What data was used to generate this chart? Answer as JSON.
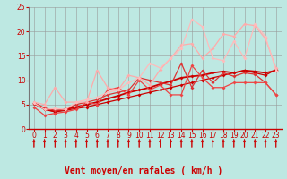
{
  "title": "",
  "xlabel": "Vent moyen/en rafales ( km/h )",
  "ylabel": "",
  "xlim": [
    -0.5,
    23.5
  ],
  "ylim": [
    0,
    25
  ],
  "xticks": [
    0,
    1,
    2,
    3,
    4,
    5,
    6,
    7,
    8,
    9,
    10,
    11,
    12,
    13,
    14,
    15,
    16,
    17,
    18,
    19,
    20,
    21,
    22,
    23
  ],
  "yticks": [
    0,
    5,
    10,
    15,
    20,
    25
  ],
  "bg_color": "#bde8e2",
  "grid_color": "#999999",
  "series": [
    {
      "x": [
        0,
        1,
        2,
        3,
        4,
        5,
        6,
        7,
        8,
        9,
        10,
        11,
        12,
        13,
        14,
        15,
        16,
        17,
        18,
        19,
        20,
        21,
        22,
        23
      ],
      "y": [
        5.2,
        4.0,
        3.5,
        3.8,
        4.2,
        4.5,
        5.0,
        5.5,
        6.0,
        6.5,
        7.0,
        7.5,
        8.0,
        8.5,
        9.0,
        9.5,
        10.0,
        10.5,
        11.0,
        11.5,
        12.0,
        11.5,
        11.0,
        12.2
      ],
      "color": "#cc0000",
      "lw": 0.9,
      "marker": "D",
      "ms": 2.0
    },
    {
      "x": [
        0,
        1,
        2,
        3,
        4,
        5,
        6,
        7,
        8,
        9,
        10,
        11,
        12,
        13,
        14,
        15,
        16,
        17,
        18,
        19,
        20,
        21,
        22,
        23
      ],
      "y": [
        5.3,
        4.1,
        3.6,
        4.0,
        4.5,
        5.0,
        5.5,
        6.2,
        6.8,
        7.5,
        8.0,
        8.5,
        9.2,
        9.8,
        10.5,
        10.8,
        11.0,
        11.5,
        11.8,
        11.5,
        12.0,
        11.8,
        11.5,
        12.0
      ],
      "color": "#cc0000",
      "lw": 1.3,
      "marker": "D",
      "ms": 2.0
    },
    {
      "x": [
        0,
        1,
        2,
        3,
        4,
        5,
        6,
        7,
        8,
        9,
        10,
        11,
        12,
        13,
        14,
        15,
        16,
        17,
        18,
        19,
        20,
        21,
        22,
        23
      ],
      "y": [
        5.4,
        4.3,
        3.8,
        4.0,
        5.0,
        5.5,
        6.0,
        7.0,
        7.5,
        8.0,
        10.5,
        10.0,
        9.5,
        9.0,
        13.5,
        8.5,
        12.0,
        9.5,
        11.5,
        10.8,
        11.5,
        11.2,
        9.5,
        7.0
      ],
      "color": "#dd3333",
      "lw": 0.9,
      "marker": "D",
      "ms": 2.0
    },
    {
      "x": [
        0,
        1,
        2,
        3,
        4,
        5,
        6,
        7,
        8,
        9,
        10,
        11,
        12,
        13,
        14,
        15,
        16,
        17,
        18,
        19,
        20,
        21,
        22,
        23
      ],
      "y": [
        4.5,
        2.8,
        3.2,
        3.5,
        4.0,
        5.5,
        5.0,
        8.0,
        8.5,
        7.0,
        10.0,
        8.0,
        9.0,
        7.0,
        7.0,
        13.0,
        10.5,
        8.5,
        8.5,
        9.5,
        9.5,
        9.5,
        9.5,
        7.0
      ],
      "color": "#ee4444",
      "lw": 0.9,
      "marker": "D",
      "ms": 2.0
    },
    {
      "x": [
        0,
        1,
        2,
        3,
        4,
        5,
        6,
        7,
        8,
        9,
        10,
        11,
        12,
        13,
        14,
        15,
        16,
        17,
        18,
        19,
        20,
        21,
        22,
        23
      ],
      "y": [
        5.5,
        5.0,
        8.5,
        5.5,
        5.5,
        5.5,
        12.0,
        8.5,
        8.0,
        11.0,
        10.5,
        9.0,
        12.2,
        14.5,
        17.2,
        17.5,
        14.5,
        16.5,
        19.5,
        19.0,
        21.5,
        21.2,
        18.5,
        12.5
      ],
      "color": "#ffaaaa",
      "lw": 0.9,
      "marker": "D",
      "ms": 2.0
    },
    {
      "x": [
        0,
        1,
        2,
        3,
        4,
        5,
        6,
        7,
        8,
        9,
        10,
        11,
        12,
        13,
        14,
        15,
        16,
        17,
        18,
        19,
        20,
        21,
        22,
        23
      ],
      "y": [
        5.3,
        4.0,
        4.2,
        4.0,
        5.5,
        6.0,
        6.5,
        7.5,
        8.0,
        9.5,
        10.5,
        13.5,
        12.5,
        14.5,
        16.5,
        22.5,
        21.0,
        14.5,
        14.0,
        18.0,
        14.5,
        21.5,
        19.0,
        12.0
      ],
      "color": "#ffbbbb",
      "lw": 0.9,
      "marker": "D",
      "ms": 2.0
    }
  ],
  "arrow_color": "#cc0000",
  "xlabel_color": "#cc0000",
  "xlabel_fontsize": 7,
  "tick_fontsize": 5.5,
  "tick_color": "#cc0000",
  "left_spine_color": "#777777"
}
